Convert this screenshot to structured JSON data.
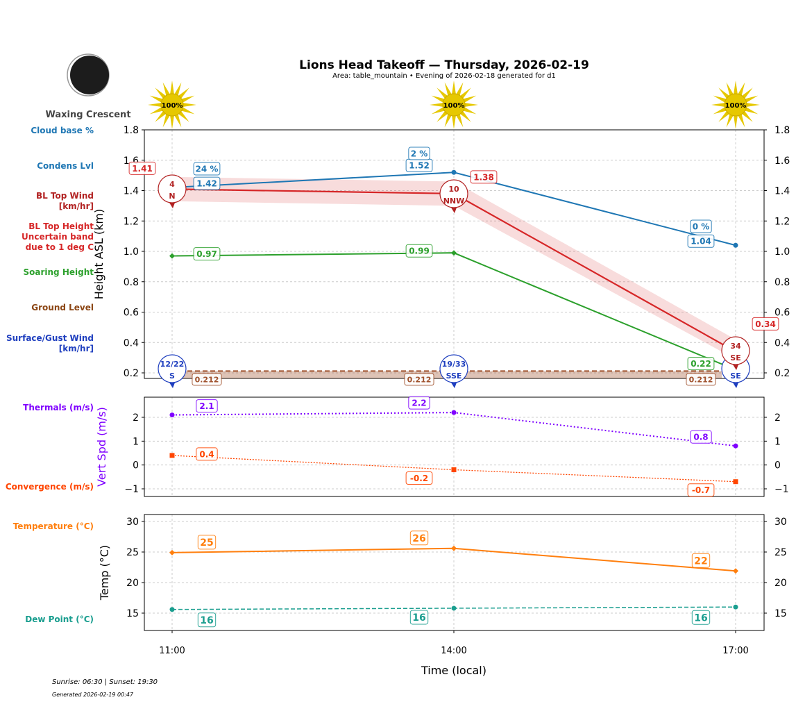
{
  "header": {
    "title": "Lions Head Takeoff — Thursday, 2026-02-19",
    "subtitle": "Area: table_mountain • Evening of 2026-02-18 generated for d1",
    "moon_phase": "Waxing Crescent"
  },
  "footer": {
    "sun_times": "Sunrise: 06:30 | Sunset: 19:30",
    "generated": "Generated 2026-02-19 00:47"
  },
  "side_labels": [
    {
      "text": "Cloud base %",
      "color": "#1f77b4"
    },
    {
      "text": "Condens Lvl",
      "color": "#1f77b4"
    },
    {
      "text": "BL Top Wind\n[km/hr]",
      "color": "#b22222"
    },
    {
      "text": "BL Top Height\nUncertain band\ndue to 1 deg C",
      "color": "#d62728"
    },
    {
      "text": "Soaring Height",
      "color": "#2ca02c"
    },
    {
      "text": "Ground Level",
      "color": "#8b4513"
    },
    {
      "text": "Surface/Gust Wind\n[km/hr]",
      "color": "#1f3fbf"
    },
    {
      "text": "Thermals (m/s)",
      "color": "#7f00ff"
    },
    {
      "text": "Convergence (m/s)",
      "color": "#ff4500"
    },
    {
      "text": "Temperature (°C)",
      "color": "#ff7f0e"
    },
    {
      "text": "Dew Point (°C)",
      "color": "#1a9e8f"
    }
  ],
  "chart_data": [
    {
      "type": "line",
      "ylabel": "Height ASL (km)",
      "ylim": [
        0.16,
        1.8
      ],
      "yticks": [
        "0.2",
        "0.4",
        "0.6",
        "0.8",
        "1.0",
        "1.2",
        "1.4",
        "1.6",
        "1.8"
      ],
      "x": [
        "11:00",
        "14:00",
        "17:00"
      ],
      "grid": true,
      "sun_percent": [
        "100%",
        "100%",
        "100%"
      ],
      "series": [
        {
          "key": "condens",
          "values": [
            1.42,
            1.52,
            1.04
          ],
          "labels": [
            "1.42",
            "1.52",
            "1.04"
          ],
          "color": "#1f77b4"
        },
        {
          "key": "cloud_base_pct",
          "labels": [
            "24 %",
            "2 %",
            "0 %"
          ],
          "color": "#1f77b4"
        },
        {
          "key": "bl_top",
          "values": [
            1.41,
            1.38,
            0.34
          ],
          "labels": [
            "1.41",
            "1.38",
            "0.34"
          ],
          "band": [
            [
              1.33,
              1.49
            ],
            [
              1.3,
              1.46
            ],
            [
              0.29,
              0.42
            ]
          ],
          "color": "#d62728"
        },
        {
          "key": "soaring",
          "values": [
            0.97,
            0.99,
            0.22
          ],
          "labels": [
            "0.97",
            "0.99",
            "0.22"
          ],
          "color": "#2ca02c"
        },
        {
          "key": "ground",
          "values": [
            0.212,
            0.212,
            0.212
          ],
          "labels": [
            "0.212",
            "0.212",
            "0.212"
          ],
          "color": "#a0522d"
        }
      ],
      "bl_wind": [
        {
          "speed": "4",
          "dir": "N"
        },
        {
          "speed": "10",
          "dir": "NNW"
        },
        {
          "speed": "34",
          "dir": "SE"
        }
      ],
      "surface_wind": [
        {
          "speed": "12/22",
          "dir": "S"
        },
        {
          "speed": "19/33",
          "dir": "SSE"
        },
        {
          "speed": "",
          "dir": "SE"
        }
      ]
    },
    {
      "type": "line",
      "ylabel": "Vert Spd (m/s)",
      "ylim": [
        -1.3,
        2.8
      ],
      "yticks": [
        "−1",
        "0",
        "1",
        "2"
      ],
      "x": [
        "11:00",
        "14:00",
        "17:00"
      ],
      "grid": true,
      "series": [
        {
          "key": "thermals",
          "values": [
            2.1,
            2.2,
            0.8
          ],
          "labels": [
            "2.1",
            "2.2",
            "0.8"
          ],
          "color": "#7f00ff"
        },
        {
          "key": "convergence",
          "values": [
            0.4,
            -0.2,
            -0.7
          ],
          "labels": [
            "0.4",
            "-0.2",
            "-0.7"
          ],
          "color": "#ff4500"
        }
      ]
    },
    {
      "type": "line",
      "ylabel": "Temp (°C)",
      "xlabel": "Time (local)",
      "ylim": [
        12.2,
        31.1
      ],
      "yticks": [
        "15",
        "20",
        "25",
        "30"
      ],
      "x": [
        "11:00",
        "14:00",
        "17:00"
      ],
      "grid": true,
      "series": [
        {
          "key": "temperature",
          "values": [
            24.9,
            25.6,
            21.9
          ],
          "labels": [
            "25",
            "26",
            "22"
          ],
          "color": "#ff7f0e"
        },
        {
          "key": "dew_point",
          "values": [
            15.6,
            15.8,
            16.0
          ],
          "labels": [
            "16",
            "16",
            "16"
          ],
          "color": "#1a9e8f"
        }
      ]
    }
  ]
}
